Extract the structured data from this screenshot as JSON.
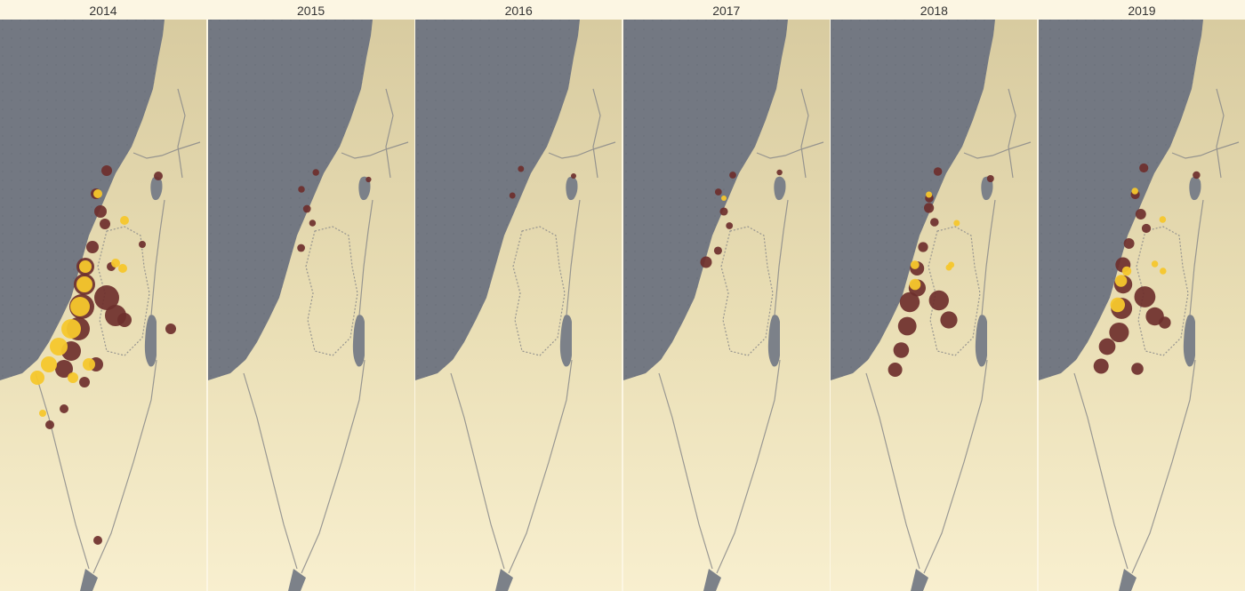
{
  "map": {
    "colors": {
      "sea": "#737882",
      "land_north": "#d8cba0",
      "land_south": "#f8efcf",
      "border": "#8a8a8a",
      "dot_dark": "#6e2f2c",
      "dot_yellow": "#f5c72c",
      "lake": "#7c8189"
    },
    "panels": [
      {
        "year": "2014",
        "clusters": [
          {
            "kind": "dark",
            "level": 1.0
          },
          {
            "kind": "yellow",
            "level": 1.0
          }
        ]
      },
      {
        "year": "2015",
        "clusters": [
          {
            "kind": "dark",
            "level": 0.25
          }
        ]
      },
      {
        "year": "2016",
        "clusters": [
          {
            "kind": "dark",
            "level": 0.15
          }
        ]
      },
      {
        "year": "2017",
        "clusters": [
          {
            "kind": "dark",
            "level": 0.3
          },
          {
            "kind": "yellow",
            "level": 0.1
          }
        ]
      },
      {
        "year": "2018",
        "clusters": [
          {
            "kind": "dark",
            "level": 0.6
          },
          {
            "kind": "yellow",
            "level": 0.4
          }
        ]
      },
      {
        "year": "2019",
        "clusters": [
          {
            "kind": "dark",
            "level": 0.7
          },
          {
            "kind": "yellow",
            "level": 0.5
          }
        ]
      }
    ]
  }
}
